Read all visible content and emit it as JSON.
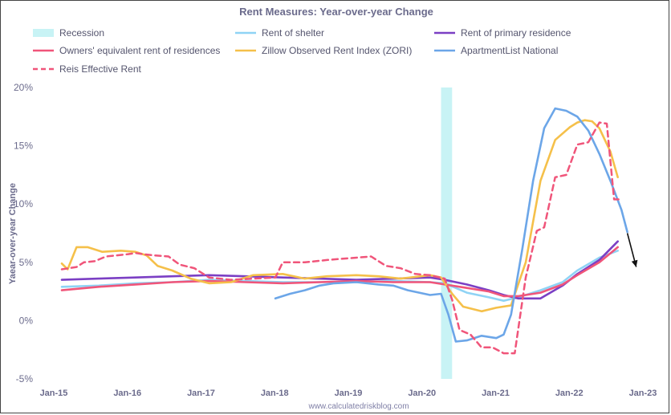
{
  "chart_data": {
    "type": "line",
    "title": "Rent Measures: Year-over-year Change",
    "ylabel": "Yaear-over-year Change",
    "source": "www.calculatedriskblog.com",
    "ylim": [
      -5,
      20
    ],
    "y_ticks": [
      20,
      15,
      10,
      5,
      0,
      -5
    ],
    "y_tick_labels": [
      "20%",
      "15%",
      "10%",
      "5%",
      "0%",
      "-5%"
    ],
    "x_range": [
      2015.0,
      2023.0
    ],
    "x_ticks": [
      2015,
      2016,
      2017,
      2018,
      2019,
      2020,
      2021,
      2022,
      2023
    ],
    "x_tick_labels": [
      "Jan-15",
      "Jan-16",
      "Jan-17",
      "Jan-18",
      "Jan-19",
      "Jan-20",
      "Jan-21",
      "Jan-22",
      "Jan-23"
    ],
    "grid": false,
    "legend_position": "top",
    "recession": {
      "name": "Recession",
      "start": 2020.15,
      "end": 2020.3,
      "color": "#c8f3f5"
    },
    "series": [
      {
        "name": "Rent of shelter",
        "color": "#8fd3f5",
        "dash": false,
        "x": [
          2015.0,
          2015.5,
          2016.0,
          2016.5,
          2017.0,
          2017.5,
          2018.0,
          2018.5,
          2019.0,
          2019.5,
          2020.0,
          2020.2,
          2020.5,
          2020.8,
          2021.0,
          2021.2,
          2021.5,
          2021.8,
          2022.0,
          2022.3,
          2022.55
        ],
        "y": [
          2.9,
          3.0,
          3.2,
          3.3,
          3.5,
          3.4,
          3.3,
          3.3,
          3.3,
          3.4,
          3.3,
          3.2,
          2.4,
          2.0,
          1.7,
          2.0,
          2.6,
          3.3,
          4.3,
          5.4,
          6.0
        ]
      },
      {
        "name": "Rent of primary residence",
        "color": "#7b3fc4",
        "dash": false,
        "x": [
          2015.0,
          2015.5,
          2016.0,
          2016.5,
          2017.0,
          2017.5,
          2018.0,
          2018.5,
          2019.0,
          2019.5,
          2020.0,
          2020.2,
          2020.5,
          2020.8,
          2021.0,
          2021.2,
          2021.5,
          2021.8,
          2022.0,
          2022.3,
          2022.55
        ],
        "y": [
          3.5,
          3.6,
          3.7,
          3.8,
          3.9,
          3.8,
          3.7,
          3.6,
          3.5,
          3.6,
          3.7,
          3.5,
          3.1,
          2.6,
          2.2,
          1.9,
          1.9,
          3.0,
          4.0,
          5.2,
          6.8
        ]
      },
      {
        "name": "Owners' equivalent rent of residences",
        "color": "#f0557a",
        "dash": false,
        "x": [
          2015.0,
          2015.5,
          2016.0,
          2016.5,
          2017.0,
          2017.5,
          2018.0,
          2018.5,
          2019.0,
          2019.5,
          2020.0,
          2020.2,
          2020.5,
          2020.8,
          2021.0,
          2021.2,
          2021.5,
          2021.8,
          2022.0,
          2022.3,
          2022.55
        ],
        "y": [
          2.6,
          2.9,
          3.1,
          3.3,
          3.4,
          3.3,
          3.2,
          3.3,
          3.4,
          3.3,
          3.3,
          3.1,
          2.8,
          2.5,
          2.1,
          2.1,
          2.4,
          3.1,
          3.9,
          5.0,
          6.3
        ]
      },
      {
        "name": "Zillow Observed Rent Index (ZORI)",
        "color": "#f5c04a",
        "dash": false,
        "x": [
          2015.0,
          2015.08,
          2015.2,
          2015.35,
          2015.55,
          2015.8,
          2016.0,
          2016.15,
          2016.3,
          2016.5,
          2016.75,
          2017.0,
          2017.3,
          2017.6,
          2018.0,
          2018.3,
          2018.6,
          2019.0,
          2019.3,
          2019.6,
          2020.0,
          2020.15,
          2020.3,
          2020.45,
          2020.7,
          2020.9,
          2021.1,
          2021.3,
          2021.5,
          2021.7,
          2021.9,
          2022.0,
          2022.1,
          2022.2,
          2022.3,
          2022.45,
          2022.55
        ],
        "y": [
          4.9,
          4.4,
          6.3,
          6.3,
          5.9,
          6.0,
          5.9,
          5.6,
          4.7,
          4.3,
          3.6,
          3.2,
          3.3,
          3.9,
          4.0,
          3.6,
          3.8,
          3.9,
          3.8,
          3.6,
          3.9,
          3.7,
          2.3,
          1.2,
          0.8,
          1.1,
          1.3,
          5.0,
          12.0,
          15.5,
          16.6,
          17.0,
          17.2,
          17.1,
          16.5,
          14.5,
          12.3
        ]
      },
      {
        "name": "ApartmentList National",
        "color": "#6ca6e8",
        "dash": false,
        "x": [
          2017.9,
          2018.1,
          2018.3,
          2018.5,
          2018.7,
          2019.0,
          2019.3,
          2019.5,
          2019.7,
          2020.0,
          2020.15,
          2020.25,
          2020.35,
          2020.5,
          2020.7,
          2020.9,
          2021.0,
          2021.1,
          2021.25,
          2021.4,
          2021.55,
          2021.7,
          2021.85,
          2022.0,
          2022.15,
          2022.3,
          2022.45,
          2022.6,
          2022.68
        ],
        "y": [
          1.9,
          2.3,
          2.6,
          3.0,
          3.2,
          3.3,
          3.1,
          3.0,
          2.6,
          2.2,
          2.3,
          0.5,
          -1.8,
          -1.7,
          -1.3,
          -1.5,
          -1.2,
          0.5,
          6.0,
          12.0,
          16.5,
          18.2,
          18.0,
          17.5,
          16.3,
          14.3,
          12.0,
          9.5,
          7.6
        ]
      },
      {
        "name": "Reis Effective Rent",
        "color": "#f0557a",
        "dash": true,
        "x": [
          2015.0,
          2015.1,
          2015.2,
          2015.3,
          2015.45,
          2015.6,
          2015.75,
          2015.9,
          2016.0,
          2016.1,
          2016.25,
          2016.45,
          2016.6,
          2016.8,
          2017.0,
          2017.3,
          2017.6,
          2017.9,
          2018.0,
          2018.3,
          2018.6,
          2018.8,
          2019.0,
          2019.2,
          2019.4,
          2019.6,
          2019.8,
          2020.0,
          2020.2,
          2020.3,
          2020.4,
          2020.55,
          2020.7,
          2020.85,
          2021.0,
          2021.15,
          2021.3,
          2021.45,
          2021.55,
          2021.7,
          2021.85,
          2022.0,
          2022.15,
          2022.3,
          2022.4,
          2022.5,
          2022.58
        ],
        "y": [
          4.4,
          4.5,
          4.6,
          5.0,
          5.1,
          5.5,
          5.6,
          5.7,
          5.8,
          5.7,
          5.6,
          5.5,
          4.8,
          4.5,
          3.7,
          3.5,
          3.6,
          3.7,
          5.0,
          5.0,
          5.2,
          5.3,
          5.4,
          5.5,
          4.7,
          4.5,
          4.0,
          3.9,
          3.6,
          1.8,
          -0.8,
          -1.2,
          -2.3,
          -2.3,
          -2.8,
          -2.8,
          3.7,
          7.7,
          8.0,
          12.3,
          12.5,
          15.1,
          15.3,
          17.0,
          16.9,
          10.4,
          10.4
        ]
      }
    ],
    "arrow": {
      "from": [
        2022.68,
        7.5
      ],
      "to": [
        2022.8,
        4.6
      ],
      "color": "#111111"
    }
  }
}
